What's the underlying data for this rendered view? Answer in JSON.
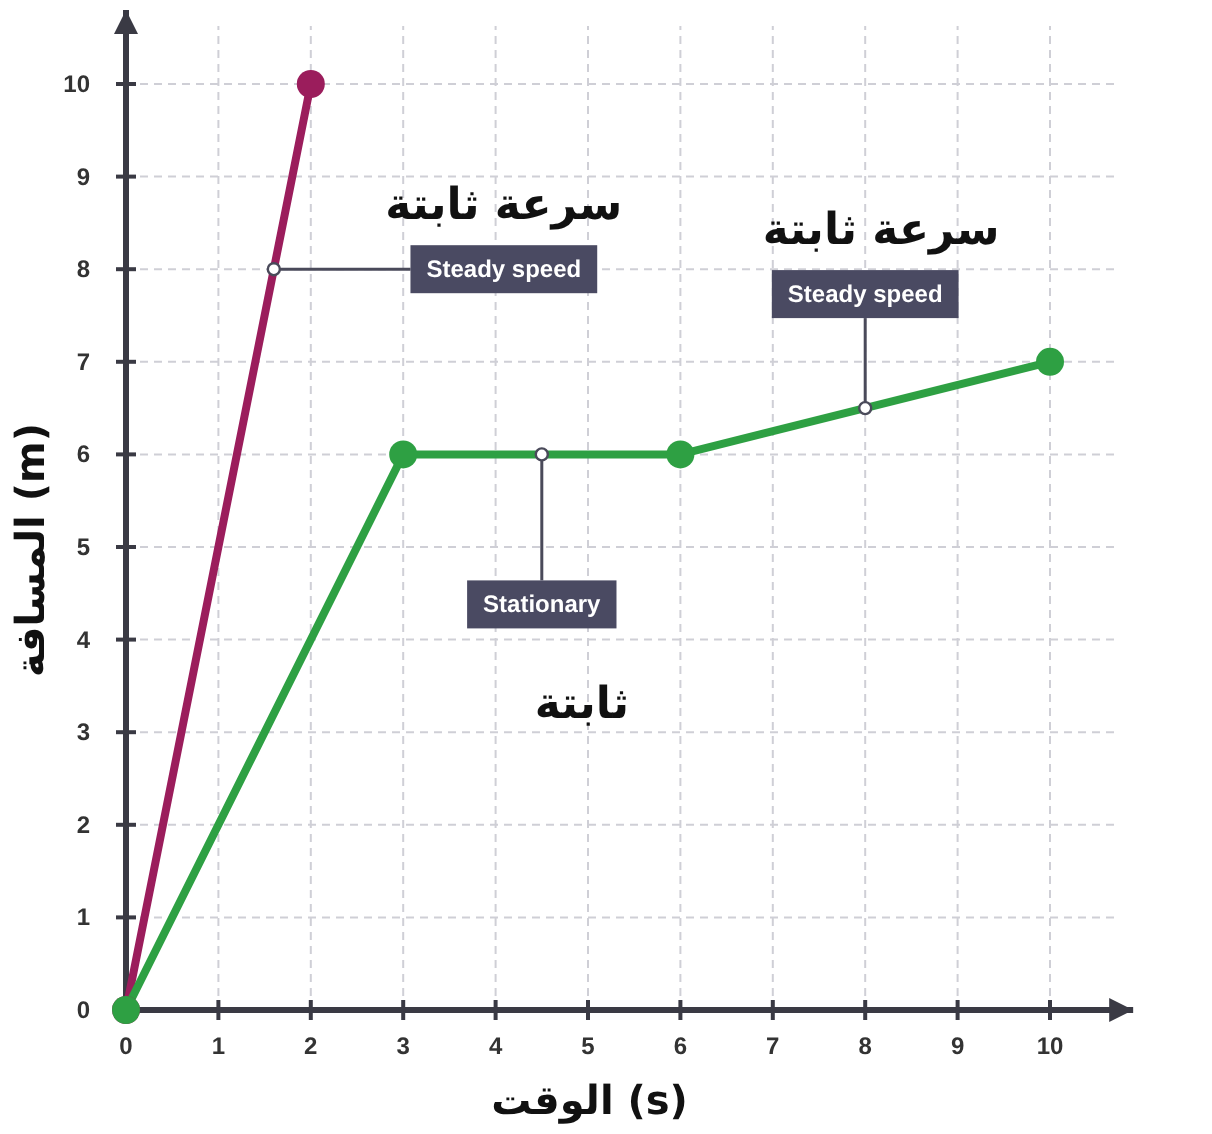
{
  "chart_data": {
    "type": "line",
    "xlabel": "الوقت (s)",
    "ylabel": "المسافة (m)",
    "xlim": [
      0,
      10.9
    ],
    "ylim": [
      0,
      10.8
    ],
    "xticks": [
      0,
      1,
      2,
      3,
      4,
      5,
      6,
      7,
      8,
      9,
      10
    ],
    "yticks": [
      0,
      1,
      2,
      3,
      4,
      5,
      6,
      7,
      8,
      9,
      10
    ],
    "grid": true,
    "marker": "circle",
    "line_style": "solid",
    "series": [
      {
        "color": "#9b1d5c",
        "x": [
          0,
          2
        ],
        "values": [
          0,
          10
        ]
      },
      {
        "color": "#2ea043",
        "x": [
          0,
          3,
          6,
          10
        ],
        "values": [
          0,
          6,
          6,
          7
        ]
      }
    ],
    "annotations": [
      {
        "text": "Steady speed",
        "x": 1.6,
        "y": 8
      },
      "سرعة ثابتة",
      {
        "text": "Stationary",
        "x": 4.5,
        "y": 6
      },
      "ثابتة",
      {
        "text": "Steady speed",
        "x": 8,
        "y": 6.5
      },
      "سرعة ثابتة"
    ]
  }
}
